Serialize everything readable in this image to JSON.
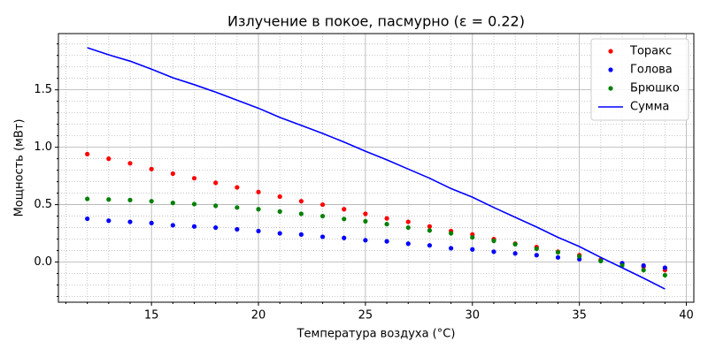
{
  "chart_data": {
    "type": "scatter-line",
    "title": "Излучение в покое, пасмурно (ε = 0.22)",
    "x_label": "Температура воздуха (°C)",
    "y_label": "Мощность (мВт)",
    "x": [
      12,
      13,
      14,
      15,
      16,
      17,
      18,
      19,
      20,
      21,
      22,
      23,
      24,
      25,
      26,
      27,
      28,
      29,
      30,
      31,
      32,
      33,
      34,
      35,
      36,
      37,
      38,
      39
    ],
    "series": [
      {
        "name": "Торакс",
        "color": "#ff0000",
        "style": "dots",
        "values": [
          0.94,
          0.9,
          0.86,
          0.81,
          0.77,
          0.73,
          0.69,
          0.65,
          0.61,
          0.57,
          0.53,
          0.5,
          0.46,
          0.42,
          0.38,
          0.35,
          0.31,
          0.27,
          0.24,
          0.2,
          0.16,
          0.13,
          0.09,
          0.06,
          0.02,
          -0.01,
          -0.04,
          -0.07
        ]
      },
      {
        "name": "Голова",
        "color": "#0000ff",
        "style": "dots",
        "values": [
          0.377,
          0.36,
          0.35,
          0.34,
          0.32,
          0.31,
          0.3,
          0.285,
          0.27,
          0.25,
          0.24,
          0.22,
          0.21,
          0.19,
          0.18,
          0.16,
          0.145,
          0.12,
          0.11,
          0.09,
          0.075,
          0.06,
          0.04,
          0.025,
          0.01,
          -0.01,
          -0.03,
          -0.05
        ]
      },
      {
        "name": "Брюшко",
        "color": "#008000",
        "style": "dots",
        "values": [
          0.55,
          0.545,
          0.54,
          0.53,
          0.515,
          0.505,
          0.49,
          0.475,
          0.46,
          0.44,
          0.42,
          0.4,
          0.375,
          0.355,
          0.33,
          0.3,
          0.275,
          0.25,
          0.215,
          0.185,
          0.155,
          0.115,
          0.085,
          0.05,
          0.01,
          -0.03,
          -0.07,
          -0.115
        ]
      },
      {
        "name": "Сумма",
        "color": "#0000ff",
        "style": "line",
        "values": [
          1.867,
          1.805,
          1.75,
          1.68,
          1.605,
          1.545,
          1.48,
          1.41,
          1.34,
          1.26,
          1.19,
          1.12,
          1.045,
          0.965,
          0.89,
          0.81,
          0.73,
          0.64,
          0.565,
          0.475,
          0.39,
          0.305,
          0.215,
          0.135,
          0.04,
          -0.05,
          -0.14,
          -0.235
        ]
      }
    ],
    "xlim": [
      10.65,
      40.35
    ],
    "ylim": [
      -0.35,
      1.99
    ],
    "xticks": [
      15,
      20,
      25,
      30,
      35,
      40
    ],
    "yticks": [
      {
        "value": 0,
        "label": "0.0"
      },
      0.5,
      {
        "value": 1,
        "label": "1.0"
      },
      1.5
    ],
    "xminorticks": [
      11,
      12,
      13,
      14,
      16,
      17,
      18,
      19,
      21,
      22,
      23,
      24,
      26,
      27,
      28,
      29,
      31,
      32,
      33,
      34,
      36,
      37,
      38,
      39
    ],
    "yminorticks": [
      -0.3,
      -0.2,
      -0.1,
      0.1,
      0.2,
      0.3,
      0.4,
      0.6,
      0.7,
      0.8,
      0.9,
      1.1,
      1.2,
      1.3,
      1.4,
      1.6,
      1.7,
      1.8,
      1.9
    ],
    "grid": true,
    "minor_grid": true,
    "legend": "upper-right"
  }
}
